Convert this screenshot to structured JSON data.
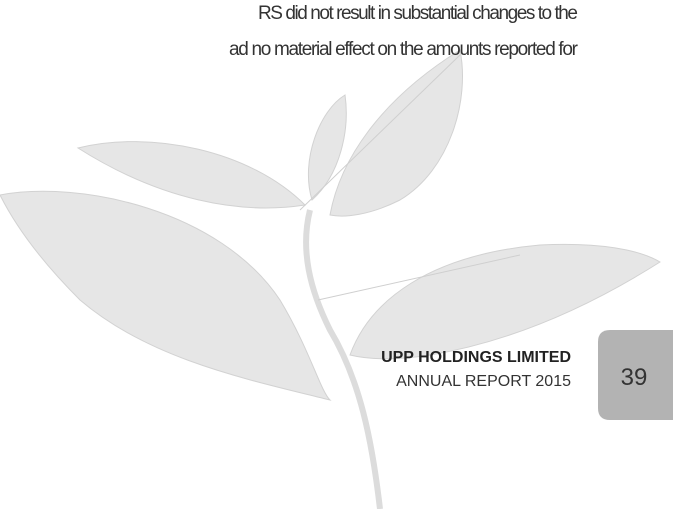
{
  "body": {
    "lines": [
      "RS did not result in substantial changes to the",
      "ad no material effect on the amounts reported for"
    ]
  },
  "footer": {
    "company": "UPP HOLDINGS LIMITED",
    "report": "ANNUAL REPORT 2015"
  },
  "page_number": "39"
}
